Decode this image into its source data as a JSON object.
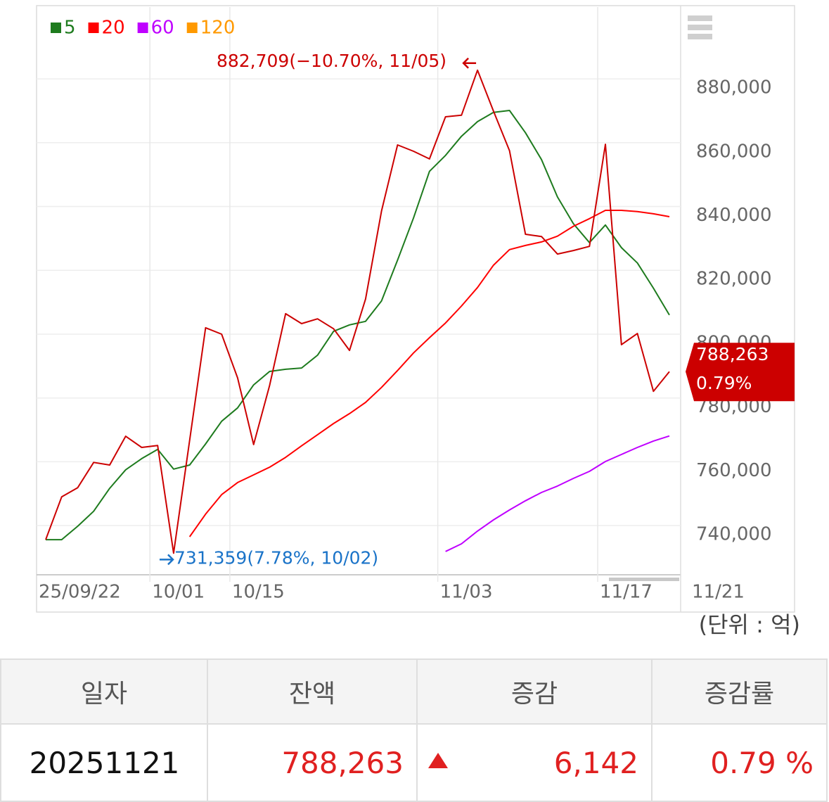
{
  "chart_data": {
    "type": "line",
    "categories": [
      "25/09/22",
      null,
      null,
      null,
      null,
      null,
      null,
      "10/01",
      null,
      null,
      null,
      null,
      "10/15",
      null,
      null,
      null,
      null,
      null,
      null,
      null,
      null,
      null,
      null,
      null,
      null,
      "11/03",
      null,
      null,
      null,
      null,
      null,
      null,
      null,
      null,
      null,
      "11/17",
      null,
      null,
      null,
      "11/21"
    ],
    "values": [
      735600,
      749000,
      751900,
      759800,
      759000,
      768000,
      764500,
      765100,
      731359,
      766700,
      802000,
      800000,
      786300,
      765400,
      783900,
      806400,
      803300,
      804800,
      801700,
      794900,
      811000,
      838600,
      859300,
      857300,
      854900,
      868100,
      868600,
      882709,
      869900,
      857500,
      831300,
      830600,
      825100,
      826200,
      827500,
      859500,
      796700,
      800200,
      782100,
      788263
    ],
    "color": "#cc0000",
    "series": [
      {
        "name": "5",
        "color": "#1e7b1e",
        "values": [
          735600,
          735600,
          739800,
          744500,
          751700,
          757500,
          761000,
          763900,
          757700,
          759000,
          765600,
          772700,
          776900,
          784100,
          788300,
          789000,
          789400,
          793400,
          800900,
          802900,
          804000,
          810400,
          823200,
          836400,
          851000,
          856000,
          862000,
          866600,
          869500,
          870100,
          863100,
          854700,
          843000,
          834600,
          828700,
          834200,
          827100,
          822300,
          814400,
          806000
        ]
      },
      {
        "name": "20",
        "color": "#ff0000",
        "values": [
          null,
          null,
          null,
          null,
          null,
          null,
          null,
          null,
          null,
          736500,
          743600,
          749700,
          753500,
          755900,
          758300,
          761400,
          765000,
          768500,
          772000,
          775100,
          778600,
          783300,
          788600,
          794100,
          798900,
          803500,
          808800,
          814600,
          821600,
          826500,
          827800,
          828900,
          830700,
          833800,
          836200,
          838800,
          838800,
          838400,
          837700,
          836800
        ]
      },
      {
        "name": "60",
        "color": "#bf00ff",
        "values": [
          null,
          null,
          null,
          null,
          null,
          null,
          null,
          null,
          null,
          null,
          null,
          null,
          null,
          null,
          null,
          null,
          null,
          null,
          null,
          null,
          null,
          null,
          null,
          null,
          null,
          731900,
          734300,
          738300,
          741800,
          744900,
          747800,
          750400,
          752400,
          754800,
          757000,
          760100,
          762300,
          764500,
          766500,
          768100
        ]
      },
      {
        "name": "120",
        "color": "#ff9900",
        "values": [
          null,
          null,
          null,
          null,
          null,
          null,
          null,
          null,
          null,
          null,
          null,
          null,
          null,
          null,
          null,
          null,
          null,
          null,
          null,
          null,
          null,
          null,
          null,
          null,
          null,
          null,
          null,
          null,
          null,
          null,
          null,
          null,
          null,
          null,
          null,
          null,
          null,
          null,
          null,
          null
        ]
      }
    ],
    "ylim": [
      724600,
      902500
    ],
    "yticks": [
      {
        "value": 740000,
        "label": "740,000"
      },
      {
        "value": 760000,
        "label": "760,000"
      },
      {
        "value": 780000,
        "label": "780,000"
      },
      {
        "value": 800000,
        "label": "800,000"
      },
      {
        "value": 820000,
        "label": "820,000"
      },
      {
        "value": 840000,
        "label": "840,000"
      },
      {
        "value": 860000,
        "label": "860,000"
      },
      {
        "value": 880000,
        "label": "880,000"
      }
    ],
    "grid": true,
    "max_label": "882,709(−10.70%, 11/05)",
    "max_color": "#cc0000",
    "min_label": "731,359(7.78%, 10/02)",
    "min_color": "#1a73c8",
    "last_label": "788,263",
    "last_change": "0.79%",
    "unit": "(단위 : 억)"
  },
  "table": {
    "headers": [
      "일자",
      "잔액",
      "증감",
      "증감률"
    ],
    "rows": [
      [
        "20251121",
        "788,263",
        "6,142",
        "0.79 %"
      ]
    ]
  }
}
